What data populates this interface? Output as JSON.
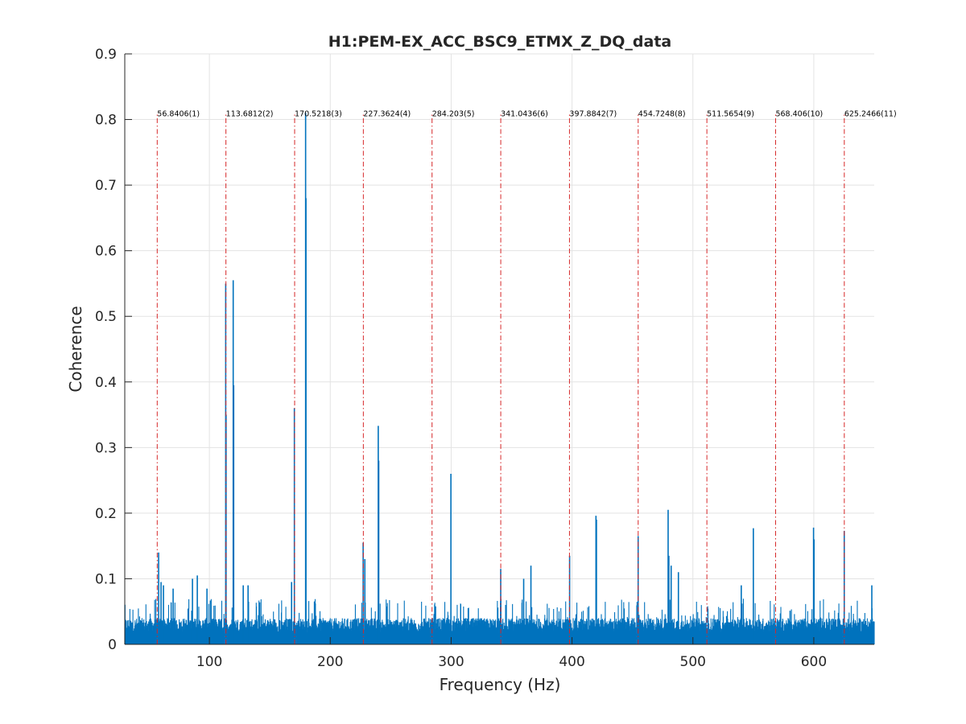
{
  "chart_data": {
    "type": "bar",
    "title": "H1:PEM-EX_ACC_BSC9_ETMX_Z_DQ_data",
    "xlabel": "Frequency (Hz)",
    "ylabel": "Coherence",
    "xlim": [
      30,
      650
    ],
    "ylim": [
      0,
      0.9
    ],
    "x_ticks": [
      100,
      200,
      300,
      400,
      500,
      600
    ],
    "y_ticks": [
      0,
      0.1,
      0.2,
      0.3,
      0.4,
      0.5,
      0.6,
      0.7,
      0.8,
      0.9
    ],
    "x_tick_labels": [
      "100",
      "200",
      "300",
      "400",
      "500",
      "600"
    ],
    "y_tick_labels": [
      "0",
      "0.1",
      "0.2",
      "0.3",
      "0.4",
      "0.5",
      "0.6",
      "0.7",
      "0.8",
      "0.9"
    ],
    "grid": true,
    "series_color": "#0072bd",
    "marker_color": "#d62728",
    "noise_floor": {
      "x_range": [
        30,
        650
      ],
      "typical_value": 0.04,
      "max_value": 0.07
    },
    "peaks": [
      {
        "x": 58,
        "y": 0.14
      },
      {
        "x": 60,
        "y": 0.095
      },
      {
        "x": 62,
        "y": 0.09
      },
      {
        "x": 70,
        "y": 0.085
      },
      {
        "x": 86,
        "y": 0.1
      },
      {
        "x": 90,
        "y": 0.105
      },
      {
        "x": 98,
        "y": 0.085
      },
      {
        "x": 113.5,
        "y": 0.55
      },
      {
        "x": 113.8,
        "y": 0.35
      },
      {
        "x": 119.7,
        "y": 0.555
      },
      {
        "x": 120.1,
        "y": 0.395
      },
      {
        "x": 128,
        "y": 0.09
      },
      {
        "x": 132,
        "y": 0.09
      },
      {
        "x": 168,
        "y": 0.095
      },
      {
        "x": 170.3,
        "y": 0.36
      },
      {
        "x": 179.6,
        "y": 0.81
      },
      {
        "x": 179.9,
        "y": 0.68
      },
      {
        "x": 227.2,
        "y": 0.155
      },
      {
        "x": 228.6,
        "y": 0.13
      },
      {
        "x": 239.7,
        "y": 0.333
      },
      {
        "x": 240.1,
        "y": 0.28
      },
      {
        "x": 299.8,
        "y": 0.26
      },
      {
        "x": 341,
        "y": 0.115
      },
      {
        "x": 360,
        "y": 0.1
      },
      {
        "x": 366,
        "y": 0.12
      },
      {
        "x": 398,
        "y": 0.135
      },
      {
        "x": 419.8,
        "y": 0.196
      },
      {
        "x": 420.2,
        "y": 0.19
      },
      {
        "x": 454.7,
        "y": 0.165
      },
      {
        "x": 479.5,
        "y": 0.205
      },
      {
        "x": 480.1,
        "y": 0.135
      },
      {
        "x": 482,
        "y": 0.12
      },
      {
        "x": 488,
        "y": 0.11
      },
      {
        "x": 540,
        "y": 0.09
      },
      {
        "x": 550,
        "y": 0.177
      },
      {
        "x": 599.8,
        "y": 0.178
      },
      {
        "x": 600.2,
        "y": 0.16
      },
      {
        "x": 625.2,
        "y": 0.173
      },
      {
        "x": 648,
        "y": 0.09
      }
    ],
    "harmonic_markers": [
      {
        "x": 56.8406,
        "label": "56.8406(1)"
      },
      {
        "x": 113.6812,
        "label": "113.6812(2)"
      },
      {
        "x": 170.5218,
        "label": "170.5218(3)"
      },
      {
        "x": 227.3624,
        "label": "227.3624(4)"
      },
      {
        "x": 284.203,
        "label": "284.203(5)"
      },
      {
        "x": 341.0436,
        "label": "341.0436(6)"
      },
      {
        "x": 397.8842,
        "label": "397.8842(7)"
      },
      {
        "x": 454.7248,
        "label": "454.7248(8)"
      },
      {
        "x": 511.5654,
        "label": "511.5654(9)"
      },
      {
        "x": 568.406,
        "label": "568.406(10)"
      },
      {
        "x": 625.2466,
        "label": "625.2466(11)"
      }
    ],
    "harmonic_marker_y": 0.81
  }
}
